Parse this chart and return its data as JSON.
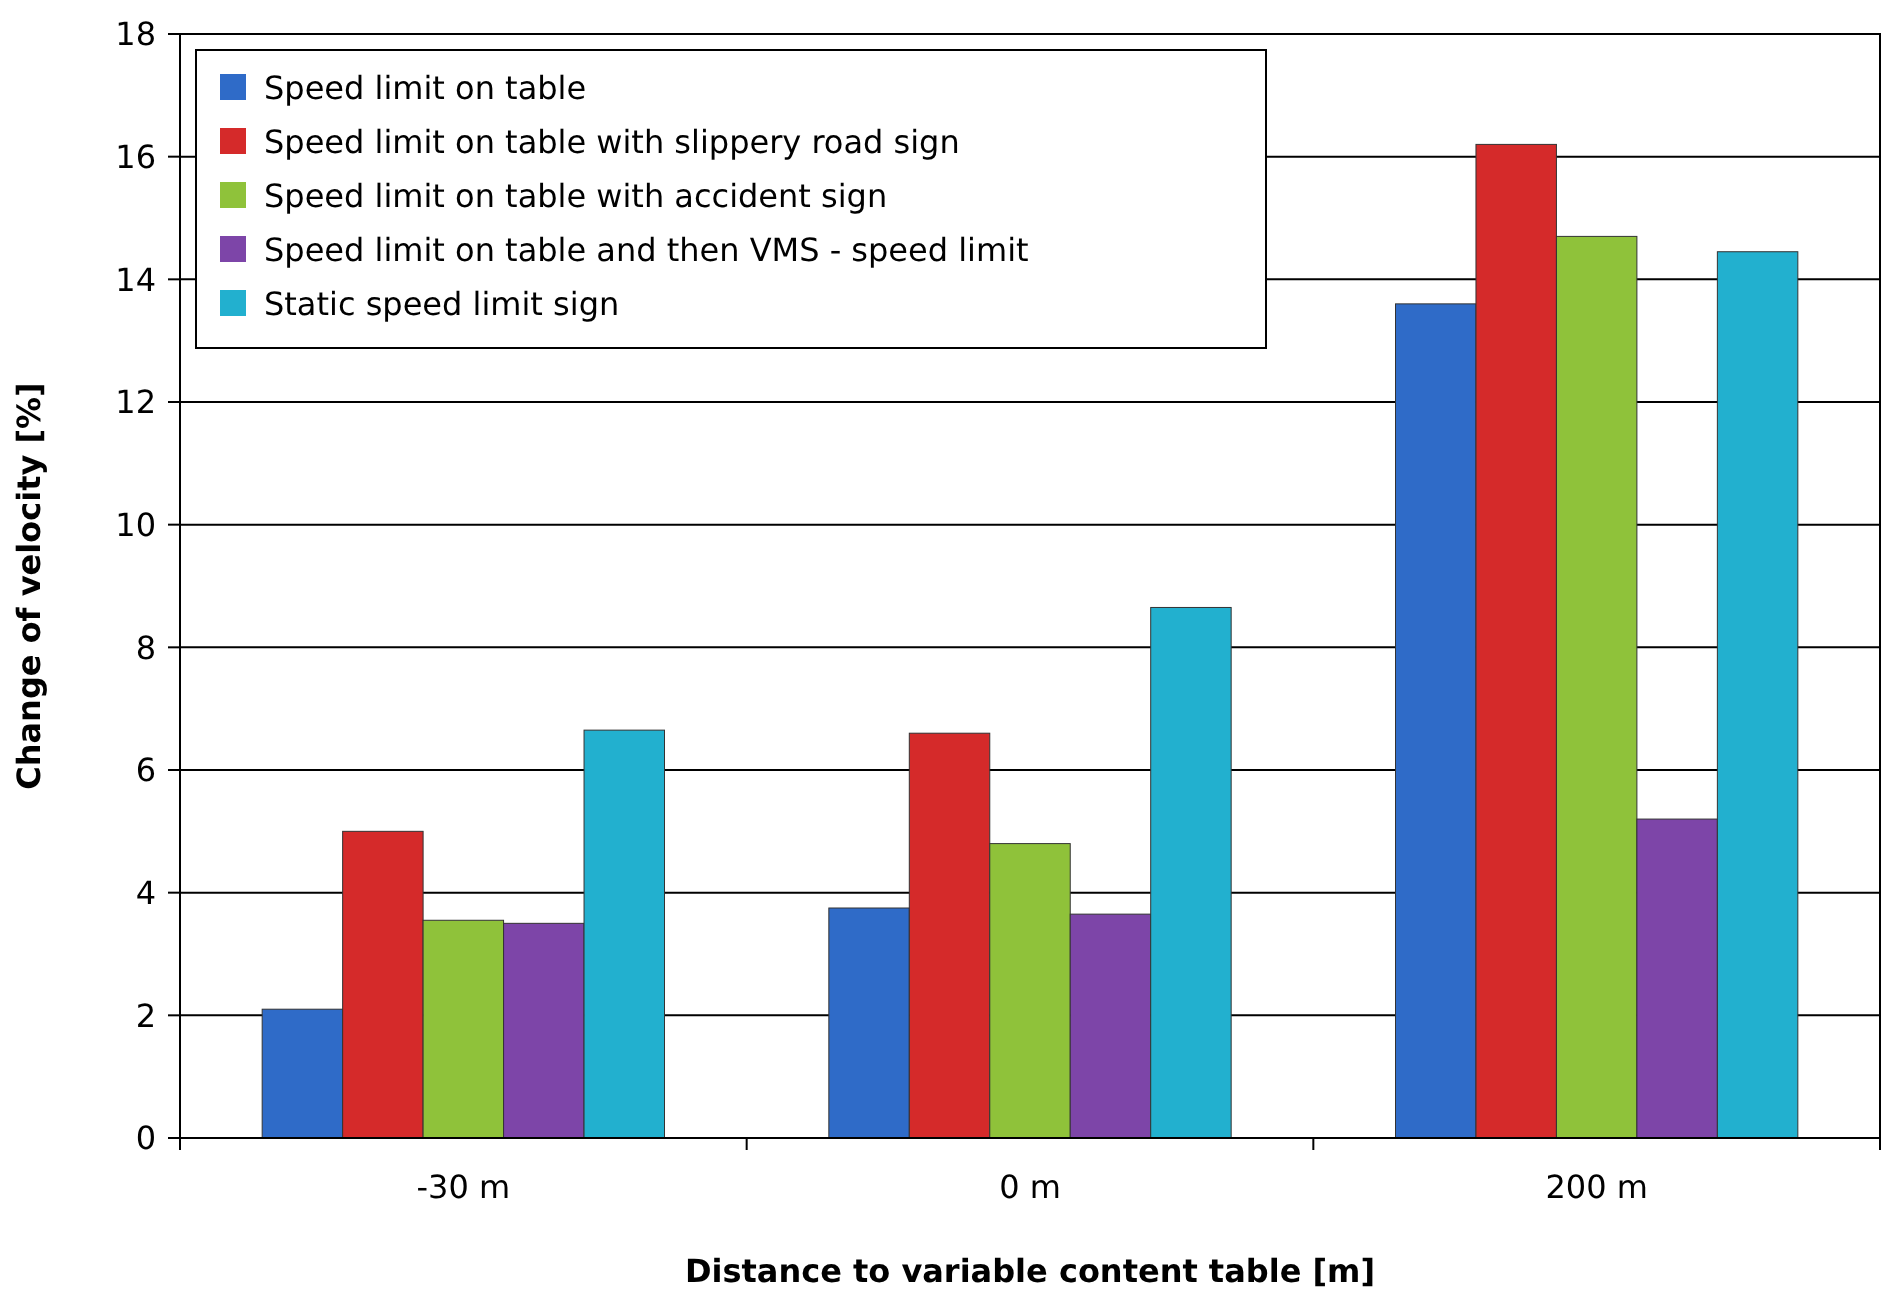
{
  "chart_data": {
    "type": "bar",
    "xlabel": "Distance to variable content table [m]",
    "ylabel": "Change of velocity [%]",
    "categories": [
      "-30 m",
      "0 m",
      "200 m"
    ],
    "series": [
      {
        "name": "Speed limit on table",
        "color": "#2f6bc8",
        "values": [
          2.1,
          3.75,
          13.6
        ]
      },
      {
        "name": "Speed limit on table with slippery road sign",
        "color": "#d52a2a",
        "values": [
          5.0,
          6.6,
          16.2
        ]
      },
      {
        "name": "Speed limit on table with accident sign",
        "color": "#8fc23a",
        "values": [
          3.55,
          4.8,
          14.7
        ]
      },
      {
        "name": "Speed limit on table and then VMS - speed limit",
        "color": "#7d45a8",
        "values": [
          3.5,
          3.65,
          5.2
        ]
      },
      {
        "name": "Static speed limit sign",
        "color": "#22b0cf",
        "values": [
          6.65,
          8.65,
          14.45
        ]
      }
    ],
    "ylim": [
      0,
      18
    ],
    "yticks": [
      0,
      2,
      4,
      6,
      8,
      10,
      12,
      14,
      16,
      18
    ],
    "grid": "y",
    "legend": "top left"
  }
}
